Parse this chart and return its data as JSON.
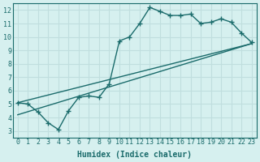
{
  "xlabel": "Humidex (Indice chaleur)",
  "xlim": [
    -0.5,
    23.5
  ],
  "ylim": [
    2.5,
    12.5
  ],
  "xticks": [
    0,
    1,
    2,
    3,
    4,
    5,
    6,
    7,
    8,
    9,
    10,
    11,
    12,
    13,
    14,
    15,
    16,
    17,
    18,
    19,
    20,
    21,
    22,
    23
  ],
  "yticks": [
    3,
    4,
    5,
    6,
    7,
    8,
    9,
    10,
    11,
    12
  ],
  "bg_color": "#d6f0ef",
  "grid_color": "#c0dede",
  "line_color": "#1a6b6b",
  "line1_x": [
    0,
    1,
    2,
    3,
    4,
    5,
    6,
    7,
    8,
    9,
    10,
    11,
    12,
    13,
    14,
    15,
    16,
    17,
    18,
    19,
    20,
    21,
    22,
    23
  ],
  "line1_y": [
    5.1,
    5.0,
    4.4,
    3.6,
    3.1,
    4.5,
    5.5,
    5.6,
    5.5,
    6.5,
    9.7,
    10.0,
    11.0,
    12.2,
    11.9,
    11.6,
    11.6,
    11.7,
    11.0,
    11.1,
    11.35,
    11.1,
    10.3,
    9.6
  ],
  "line2_x": [
    0,
    23
  ],
  "line2_y": [
    4.2,
    9.5
  ],
  "line3_x": [
    0,
    23
  ],
  "line3_y": [
    5.1,
    9.5
  ],
  "font_family": "monospace",
  "title_fontsize": 7,
  "label_fontsize": 7,
  "tick_fontsize": 6
}
